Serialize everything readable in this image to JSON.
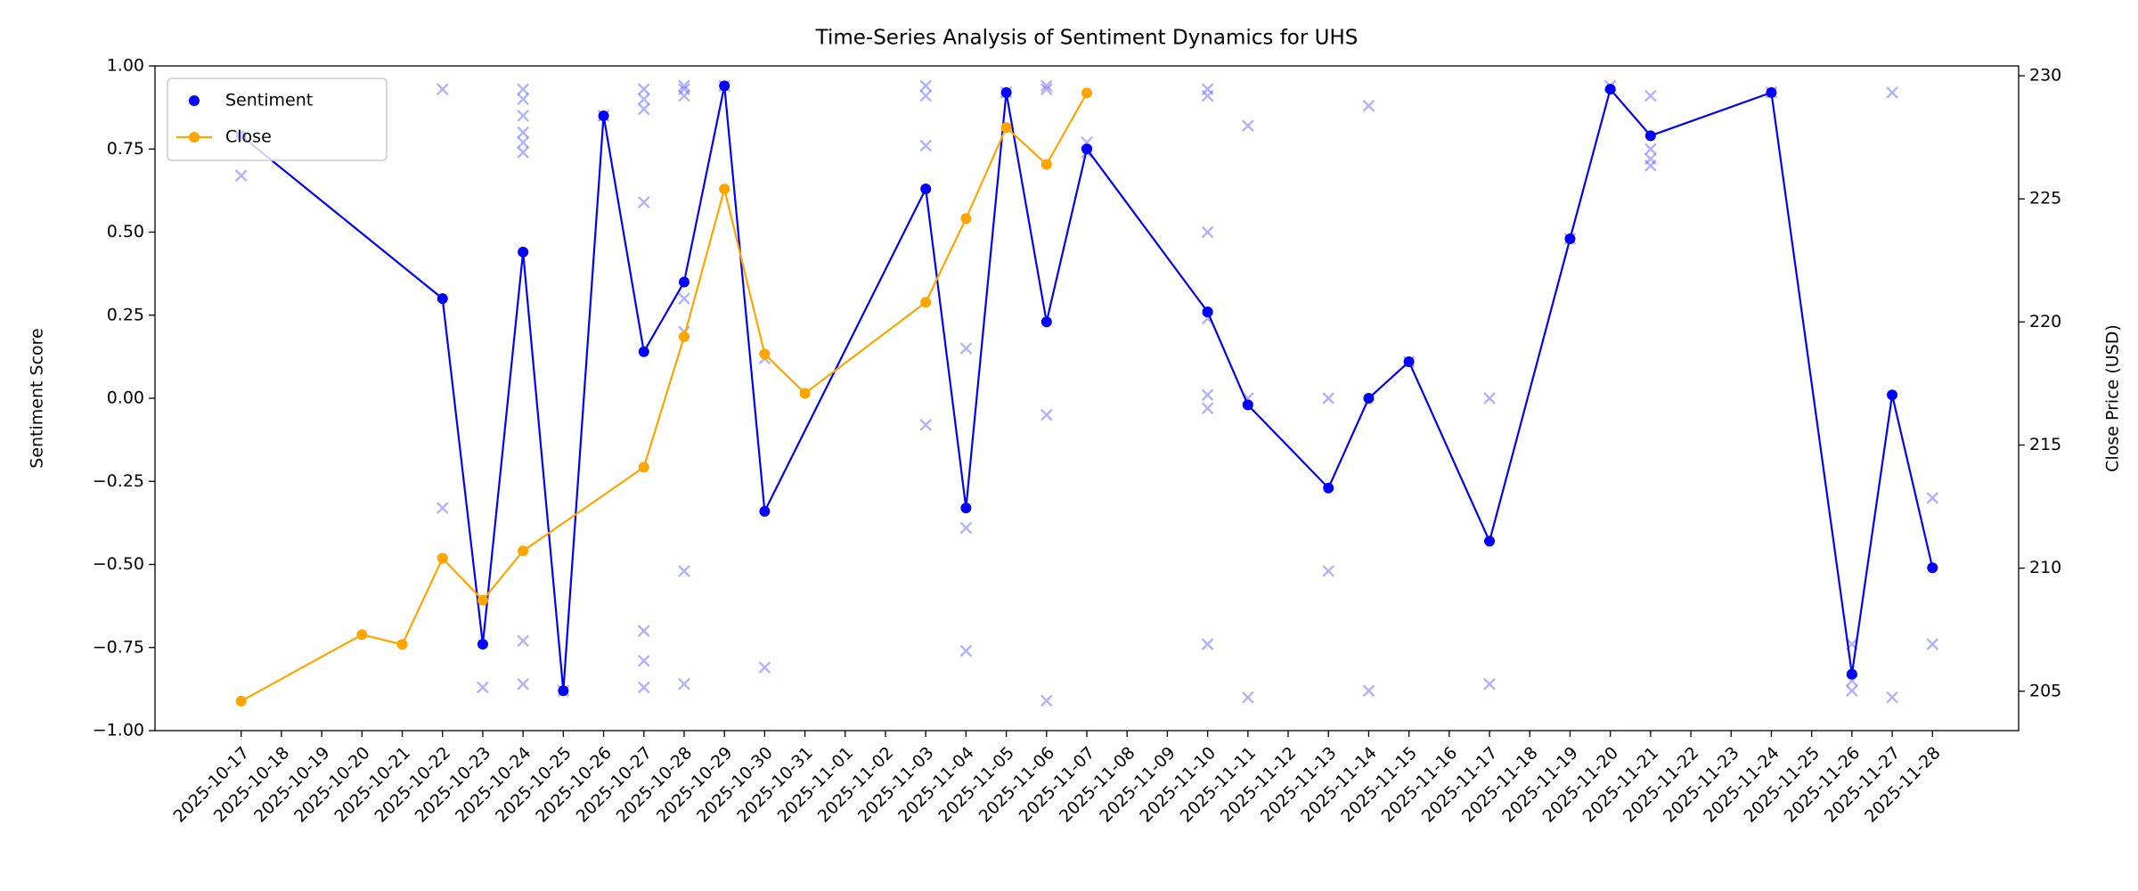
{
  "chart_data": {
    "type": "line",
    "title": "Time-Series Analysis of Sentiment Dynamics for UHS",
    "y_label": "Sentiment Score",
    "y2_label": "Close Price (USD)",
    "categories": [
      "2025-10-17",
      "2025-10-18",
      "2025-10-19",
      "2025-10-20",
      "2025-10-21",
      "2025-10-22",
      "2025-10-23",
      "2025-10-24",
      "2025-10-25",
      "2025-10-26",
      "2025-10-27",
      "2025-10-28",
      "2025-10-29",
      "2025-10-30",
      "2025-10-31",
      "2025-11-01",
      "2025-11-02",
      "2025-11-03",
      "2025-11-04",
      "2025-11-05",
      "2025-11-06",
      "2025-11-07",
      "2025-11-08",
      "2025-11-09",
      "2025-11-10",
      "2025-11-11",
      "2025-11-12",
      "2025-11-13",
      "2025-11-14",
      "2025-11-15",
      "2025-11-16",
      "2025-11-17",
      "2025-11-18",
      "2025-11-19",
      "2025-11-20",
      "2025-11-21",
      "2025-11-22",
      "2025-11-23",
      "2025-11-24",
      "2025-11-25",
      "2025-11-26",
      "2025-11-27",
      "2025-11-28"
    ],
    "ylim": [
      -1,
      1
    ],
    "yticks": [
      {
        "value": -1,
        "label": "−1.00"
      },
      {
        "value": -0.75,
        "label": "−0.75"
      },
      {
        "value": -0.5,
        "label": "−0.50"
      },
      {
        "value": -0.25,
        "label": "−0.25"
      },
      {
        "value": 0,
        "label": "0.00"
      },
      {
        "value": 0.25,
        "label": "0.25"
      },
      {
        "value": 0.5,
        "label": "0.50"
      },
      {
        "value": 0.75,
        "label": "0.75"
      },
      {
        "value": 1,
        "label": "1.00"
      }
    ],
    "y2lim": [
      203.4,
      230.4
    ],
    "y2ticks": [
      205,
      210,
      215,
      220,
      225,
      230
    ],
    "legend": "upper left",
    "series": [
      {
        "name": "Sentiment",
        "color": "#0000ff",
        "x": [
          "2025-10-17",
          "2025-10-22",
          "2025-10-23",
          "2025-10-24",
          "2025-10-25",
          "2025-10-26",
          "2025-10-27",
          "2025-10-28",
          "2025-10-29",
          "2025-10-30",
          "2025-11-03",
          "2025-11-04",
          "2025-11-05",
          "2025-11-06",
          "2025-11-07",
          "2025-11-10",
          "2025-11-11",
          "2025-11-13",
          "2025-11-14",
          "2025-11-15",
          "2025-11-17",
          "2025-11-19",
          "2025-11-20",
          "2025-11-21",
          "2025-11-24",
          "2025-11-26",
          "2025-11-27",
          "2025-11-28"
        ],
        "values": [
          0.79,
          0.3,
          -0.74,
          0.44,
          -0.88,
          0.85,
          0.14,
          0.35,
          0.94,
          -0.34,
          0.63,
          -0.33,
          0.92,
          0.23,
          0.75,
          0.26,
          -0.02,
          -0.27,
          0.0,
          0.11,
          -0.43,
          0.48,
          0.93,
          0.79,
          0.92,
          -0.83,
          0.01,
          -0.51
        ]
      },
      {
        "name": "Close",
        "color": "#ffa500",
        "axis": "y2",
        "x": [
          "2025-10-17",
          "2025-10-20",
          "2025-10-21",
          "2025-10-22",
          "2025-10-23",
          "2025-10-24",
          "2025-10-27",
          "2025-10-28",
          "2025-10-29",
          "2025-10-30",
          "2025-10-31",
          "2025-11-03",
          "2025-11-04",
          "2025-11-05",
          "2025-11-06",
          "2025-11-07"
        ],
        "values": [
          204.6,
          207.3,
          206.9,
          210.4,
          208.7,
          210.7,
          214.1,
          219.4,
          225.4,
          218.7,
          217.1,
          220.8,
          224.2,
          227.9,
          226.4,
          229.3
        ]
      }
    ],
    "points": {
      "color": "#6666ff",
      "x": [
        "2025-10-17",
        "2025-10-17",
        "2025-10-22",
        "2025-10-22",
        "2025-10-23",
        "2025-10-24",
        "2025-10-24",
        "2025-10-24",
        "2025-10-24",
        "2025-10-24",
        "2025-10-24",
        "2025-10-24",
        "2025-10-24",
        "2025-10-25",
        "2025-10-26",
        "2025-10-27",
        "2025-10-27",
        "2025-10-27",
        "2025-10-27",
        "2025-10-27",
        "2025-10-27",
        "2025-10-27",
        "2025-10-28",
        "2025-10-28",
        "2025-10-28",
        "2025-10-28",
        "2025-10-28",
        "2025-10-28",
        "2025-10-28",
        "2025-10-29",
        "2025-10-30",
        "2025-10-30",
        "2025-11-03",
        "2025-11-03",
        "2025-11-03",
        "2025-11-03",
        "2025-11-04",
        "2025-11-04",
        "2025-11-04",
        "2025-11-05",
        "2025-11-06",
        "2025-11-06",
        "2025-11-06",
        "2025-11-06",
        "2025-11-07",
        "2025-11-07",
        "2025-11-10",
        "2025-11-10",
        "2025-11-10",
        "2025-11-10",
        "2025-11-10",
        "2025-11-10",
        "2025-11-10",
        "2025-11-11",
        "2025-11-11",
        "2025-11-11",
        "2025-11-13",
        "2025-11-13",
        "2025-11-14",
        "2025-11-14",
        "2025-11-15",
        "2025-11-17",
        "2025-11-17",
        "2025-11-19",
        "2025-11-20",
        "2025-11-21",
        "2025-11-21",
        "2025-11-21",
        "2025-11-21",
        "2025-11-24",
        "2025-11-26",
        "2025-11-26",
        "2025-11-26",
        "2025-11-27",
        "2025-11-27",
        "2025-11-28",
        "2025-11-28"
      ],
      "values": [
        0.91,
        0.67,
        0.93,
        -0.33,
        -0.87,
        0.93,
        0.9,
        0.85,
        0.8,
        0.77,
        0.74,
        -0.73,
        -0.86,
        -0.88,
        0.85,
        0.93,
        0.9,
        0.87,
        0.59,
        -0.7,
        -0.79,
        -0.87,
        0.94,
        0.93,
        0.91,
        0.3,
        0.2,
        -0.52,
        -0.86,
        0.94,
        0.12,
        -0.81,
        0.94,
        0.91,
        0.76,
        -0.08,
        0.15,
        -0.39,
        -0.76,
        0.92,
        0.94,
        0.93,
        -0.05,
        -0.91,
        0.77,
        0.74,
        0.93,
        0.91,
        0.5,
        0.24,
        0.01,
        -0.03,
        -0.74,
        0.82,
        0.0,
        -0.9,
        0.0,
        -0.52,
        0.88,
        -0.88,
        0.11,
        0.0,
        -0.86,
        0.48,
        0.94,
        0.91,
        0.75,
        0.72,
        0.7,
        0.92,
        -0.74,
        -0.85,
        -0.88,
        0.92,
        -0.9,
        -0.3,
        -0.74
      ]
    }
  }
}
